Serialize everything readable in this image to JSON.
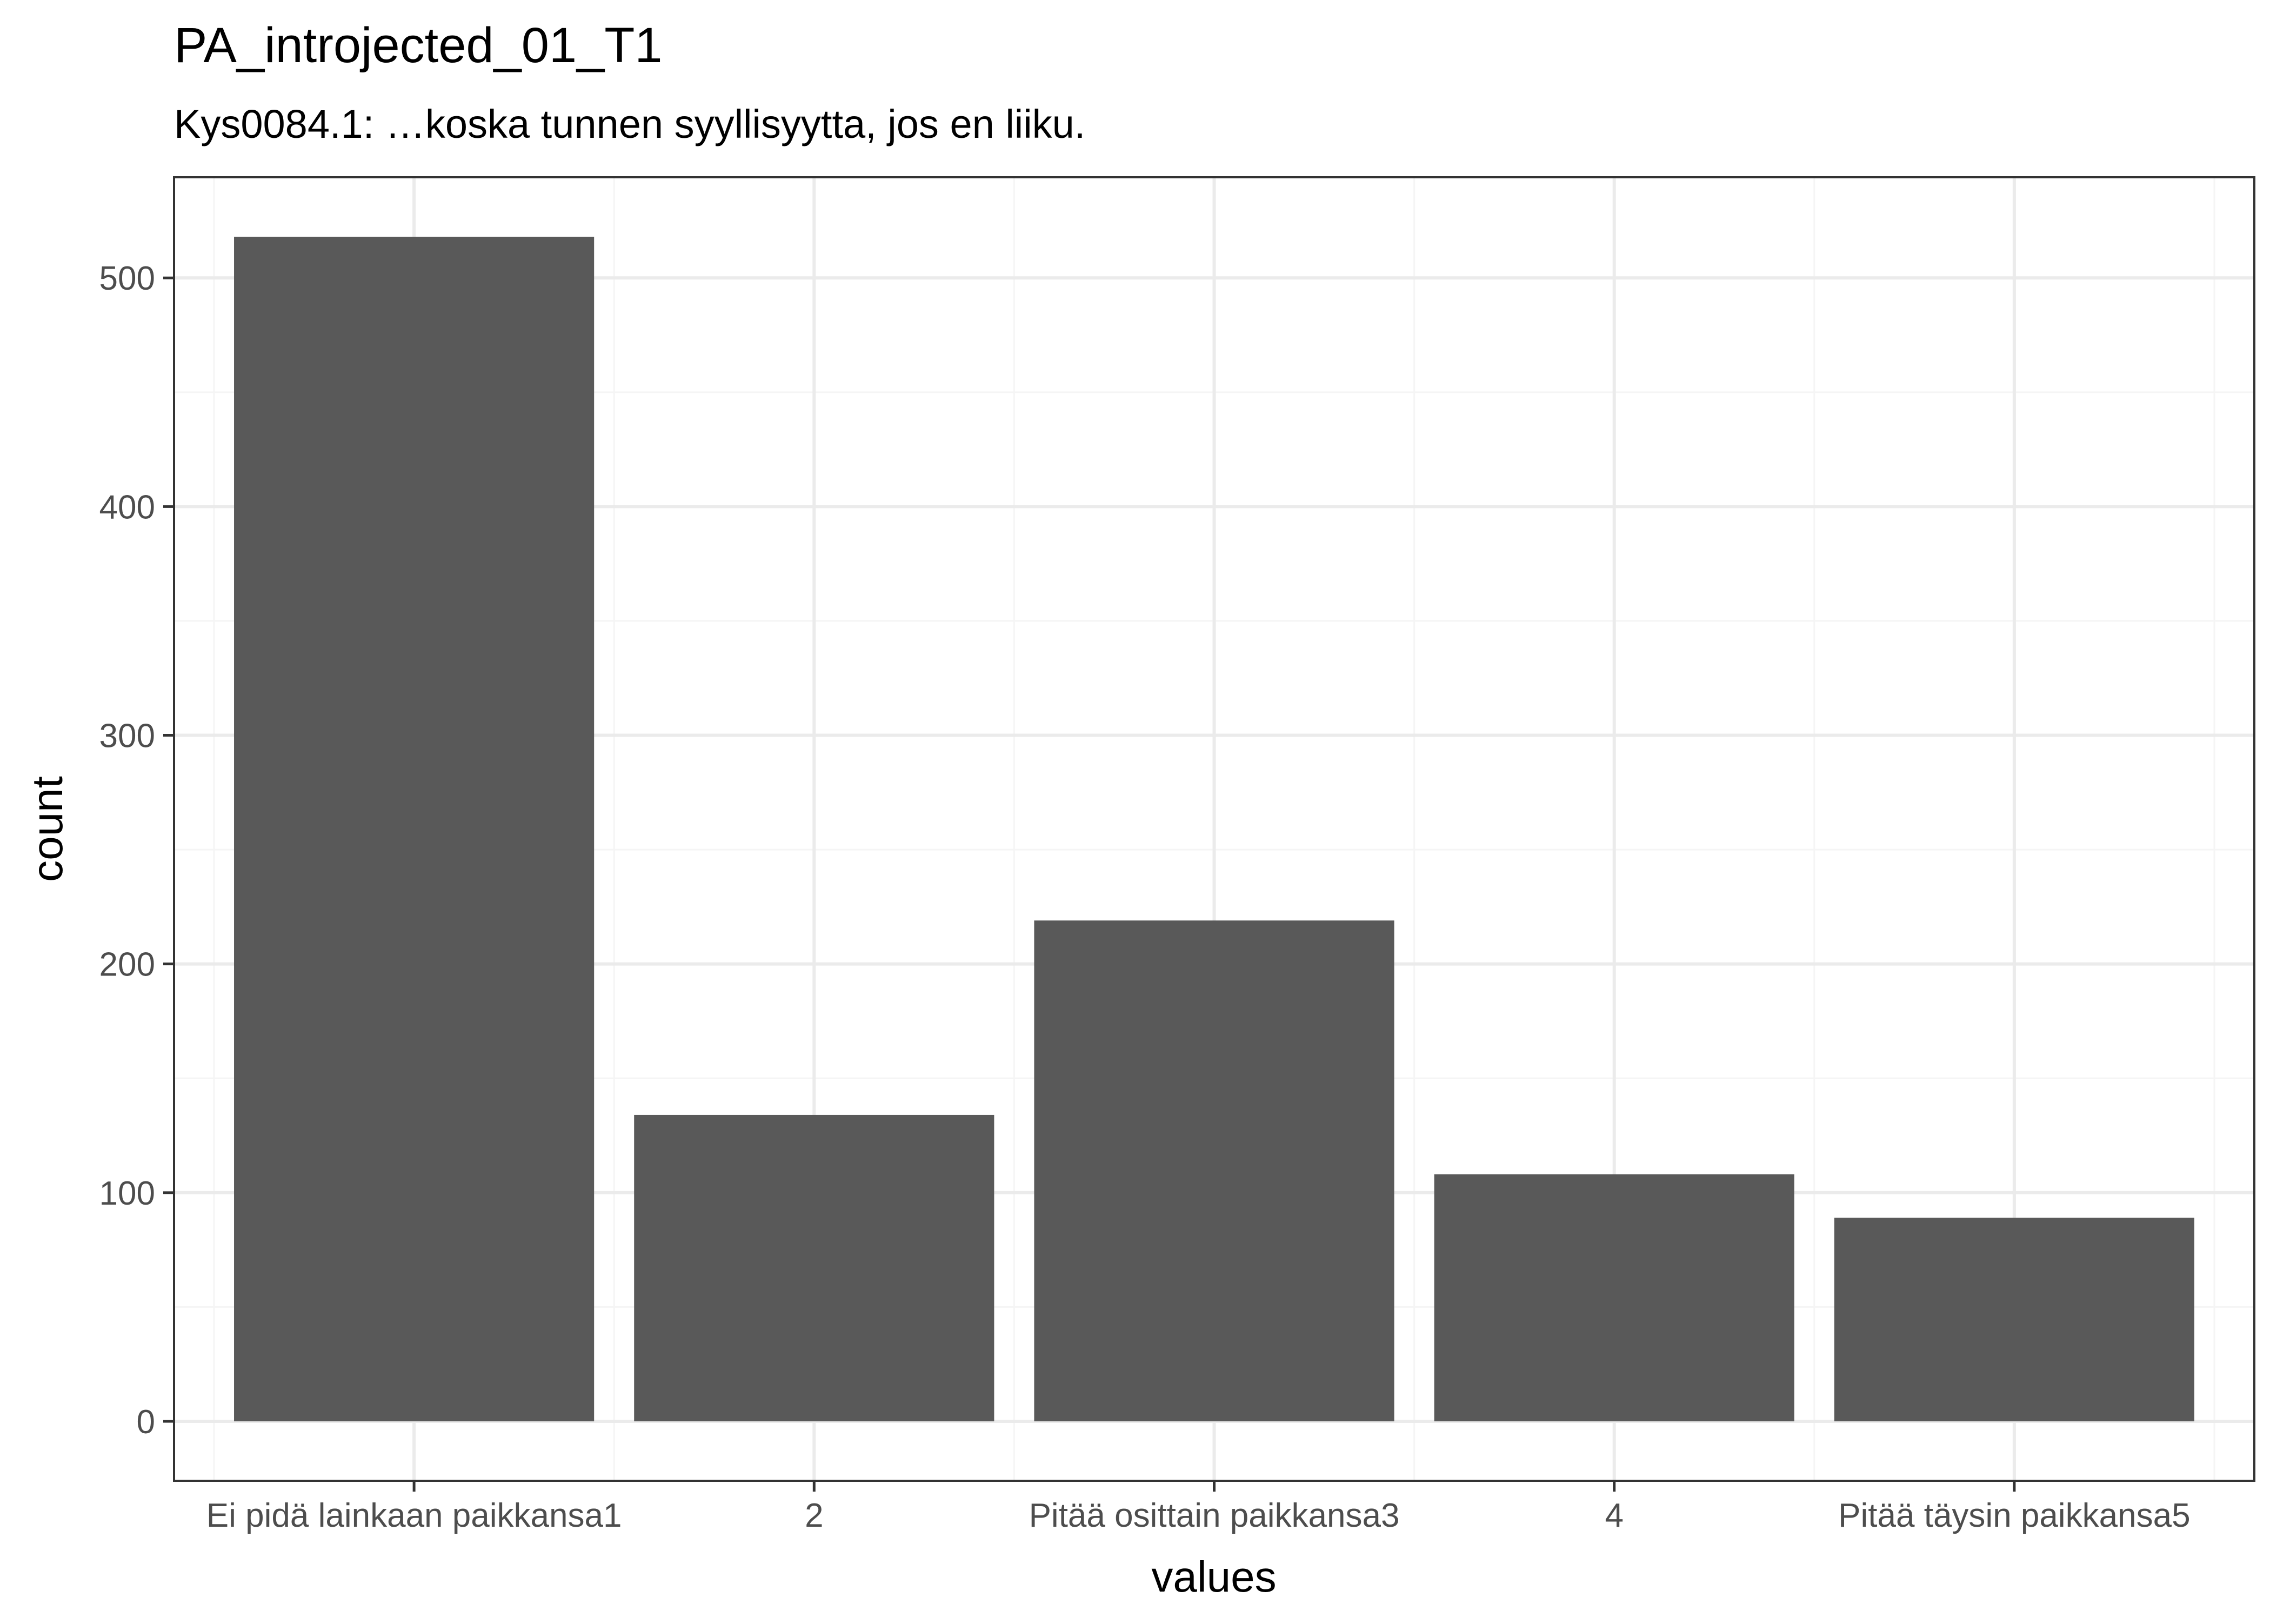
{
  "chart_data": {
    "type": "bar",
    "title": "PA_introjected_01_T1",
    "subtitle": "Kys0084.1: …koska tunnen syyllisyytta, jos en liiku.",
    "xlabel": "values",
    "ylabel": "count",
    "categories": [
      "Ei pidä lainkaan paikkansa1",
      "2",
      "Pitää osittain paikkansa3",
      "4",
      "Pitää täysin paikkansa5"
    ],
    "values": [
      518,
      134,
      219,
      108,
      89
    ],
    "ylim": [
      -26,
      544
    ],
    "yticks": [
      0,
      100,
      200,
      300,
      400,
      500
    ],
    "grid": true,
    "legend": "none",
    "colors": {
      "bar": "#595959",
      "grid_major": "#ebebeb",
      "grid_minor": "#f5f5f5",
      "panel_border": "#333333",
      "axis_text": "#4d4d4d",
      "title_text": "#000000"
    }
  }
}
